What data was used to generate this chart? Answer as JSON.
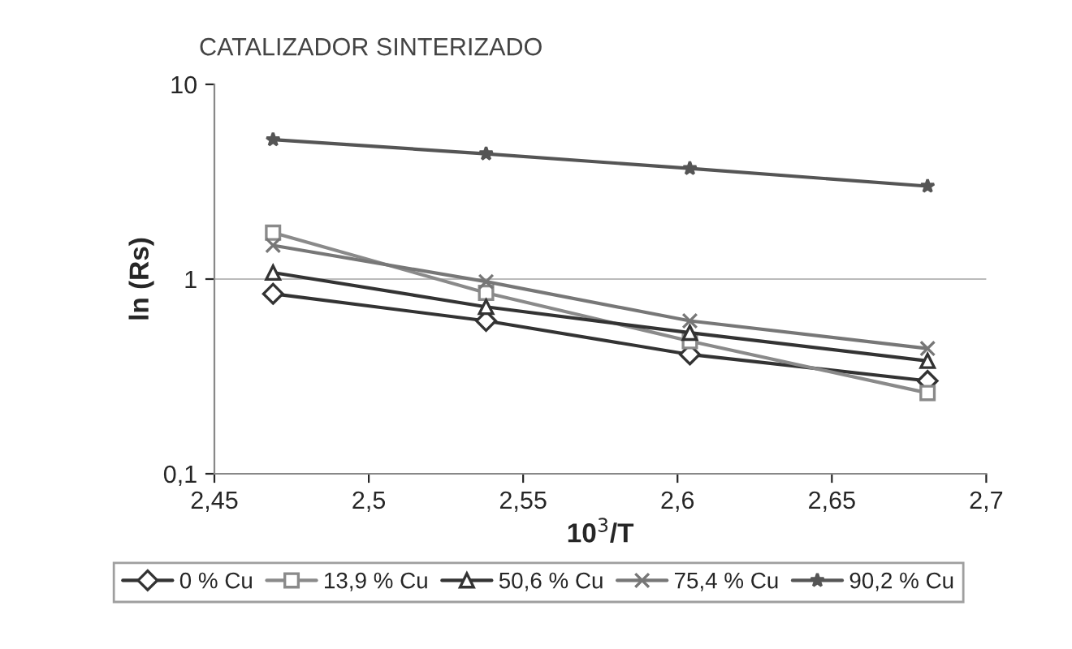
{
  "chart_data": {
    "type": "line",
    "title": "CATALIZADOR SINTERIZADO",
    "xlabel": "10$^{3}$/T",
    "ylabel": "ln (Rs)",
    "x": [
      2.469,
      2.538,
      2.604,
      2.681
    ],
    "series": [
      {
        "name": "0 % Cu",
        "color": "#333333",
        "marker": "diamond",
        "values": [
          0.84,
          0.61,
          0.41,
          0.3
        ]
      },
      {
        "name": "13,9 % Cu",
        "color": "#8a8a8a",
        "marker": "square",
        "values": [
          1.73,
          0.85,
          0.48,
          0.26
        ]
      },
      {
        "name": "50,6 % Cu",
        "color": "#333333",
        "marker": "triangle",
        "values": [
          1.08,
          0.72,
          0.53,
          0.38
        ]
      },
      {
        "name": "75,4 % Cu",
        "color": "#777777",
        "marker": "cross",
        "values": [
          1.49,
          0.97,
          0.61,
          0.44
        ]
      },
      {
        "name": "90,2 % Cu",
        "color": "#555555",
        "marker": "star",
        "values": [
          5.2,
          4.4,
          3.7,
          3.0
        ]
      }
    ],
    "log": "y",
    "xlim": [
      2.45,
      2.7
    ],
    "ylim": [
      0.1,
      10
    ],
    "xticks": [
      {
        "value": 2.45,
        "label": "2,45"
      },
      {
        "value": 2.5,
        "label": "2,5"
      },
      {
        "value": 2.55,
        "label": "2,55"
      },
      {
        "value": 2.6,
        "label": "2,6"
      },
      {
        "value": 2.65,
        "label": "2,65"
      },
      {
        "value": 2.7,
        "label": "2,7"
      }
    ],
    "yticks": [
      {
        "value": 0.1,
        "label": "0,1"
      },
      1,
      10
    ],
    "ref_lines": [
      {
        "axis": "y",
        "value": 1,
        "color": "#bbbbbb"
      }
    ],
    "legend": "bottom",
    "grid": false
  }
}
